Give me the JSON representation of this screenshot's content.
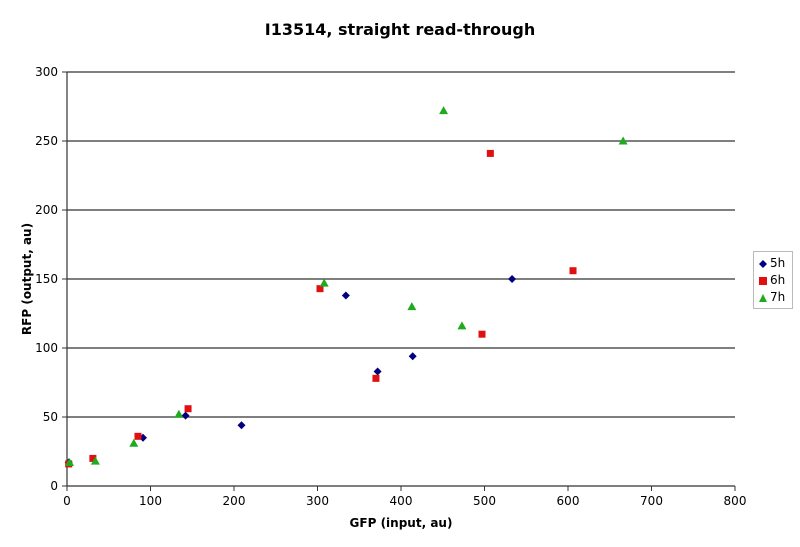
{
  "chart_data": {
    "type": "scatter",
    "title": "I13514, straight read-through",
    "xlabel": "GFP (input, au)",
    "ylabel": "RFP (output, au)",
    "xlim": [
      0,
      800
    ],
    "ylim": [
      0,
      300
    ],
    "xticks": [
      0,
      100,
      200,
      300,
      400,
      500,
      600,
      700,
      800
    ],
    "yticks": [
      0,
      50,
      100,
      150,
      200,
      250,
      300
    ],
    "grid": "horizontal",
    "legend_position": "right",
    "series": [
      {
        "name": "5h",
        "marker": "diamond",
        "color": "#000080",
        "points": [
          [
            2,
            17
          ],
          [
            91,
            35
          ],
          [
            142,
            51
          ],
          [
            209,
            44
          ],
          [
            334,
            138
          ],
          [
            372,
            83
          ],
          [
            414,
            94
          ],
          [
            533,
            150
          ]
        ]
      },
      {
        "name": "6h",
        "marker": "square",
        "color": "#e01010",
        "points": [
          [
            2,
            16
          ],
          [
            31,
            20
          ],
          [
            85,
            36
          ],
          [
            145,
            56
          ],
          [
            303,
            143
          ],
          [
            370,
            78
          ],
          [
            497,
            110
          ],
          [
            507,
            241
          ],
          [
            606,
            156
          ]
        ]
      },
      {
        "name": "7h",
        "marker": "triangle",
        "color": "#1faa1f",
        "points": [
          [
            3,
            17
          ],
          [
            34,
            18
          ],
          [
            80,
            31
          ],
          [
            134,
            52
          ],
          [
            308,
            147
          ],
          [
            413,
            130
          ],
          [
            451,
            272
          ],
          [
            473,
            116
          ],
          [
            666,
            250
          ]
        ]
      }
    ]
  },
  "legend": {
    "items": [
      {
        "label": "5h"
      },
      {
        "label": "6h"
      },
      {
        "label": "7h"
      }
    ]
  }
}
